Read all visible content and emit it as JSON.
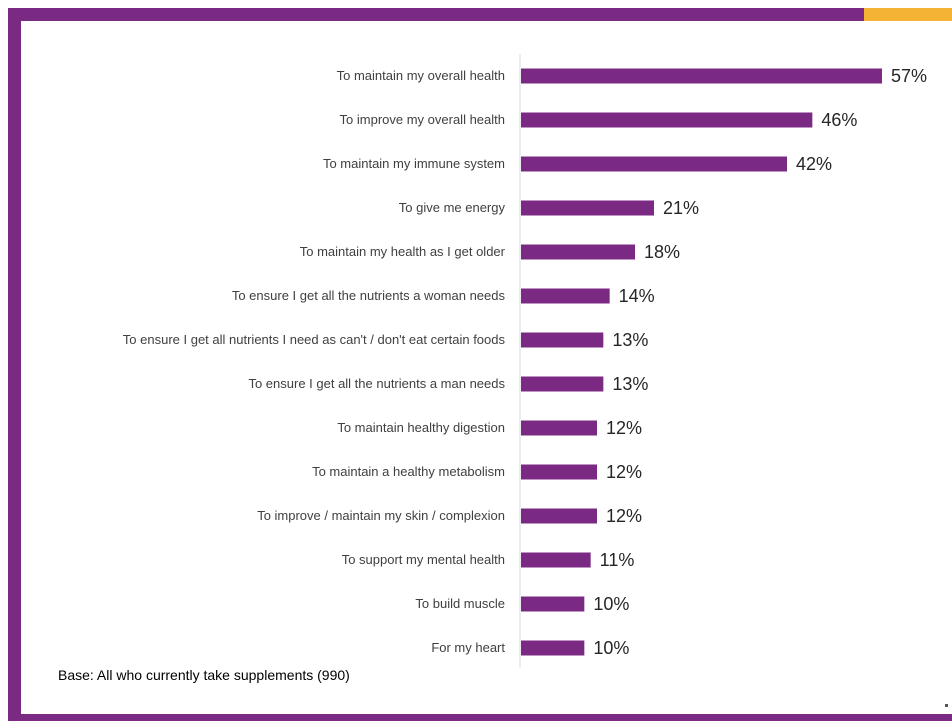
{
  "chart_data": {
    "type": "bar",
    "orientation": "horizontal",
    "categories": [
      "To maintain my overall health",
      "To improve my overall health",
      "To maintain my immune system",
      "To give me energy",
      "To maintain my health as I get older",
      "To ensure I get all the nutrients a woman needs",
      "To ensure I get all nutrients I need as can't / don't eat certain foods",
      "To ensure I get all the nutrients a man needs",
      "To maintain healthy digestion",
      "To maintain a healthy metabolism",
      "To improve / maintain my skin / complexion",
      "To support my mental health",
      "To build muscle",
      "For my heart"
    ],
    "values": [
      57,
      46,
      42,
      21,
      18,
      14,
      13,
      13,
      12,
      12,
      12,
      11,
      10,
      10
    ],
    "value_suffix": "%",
    "xlim": [
      0,
      57
    ],
    "grid": false,
    "legend": "none",
    "bar_color": "#7b2a83"
  },
  "footnote": "Base: All who currently take supplements (990)",
  "colors": {
    "frame": "#7b2a83",
    "accent": "#f5b335"
  }
}
